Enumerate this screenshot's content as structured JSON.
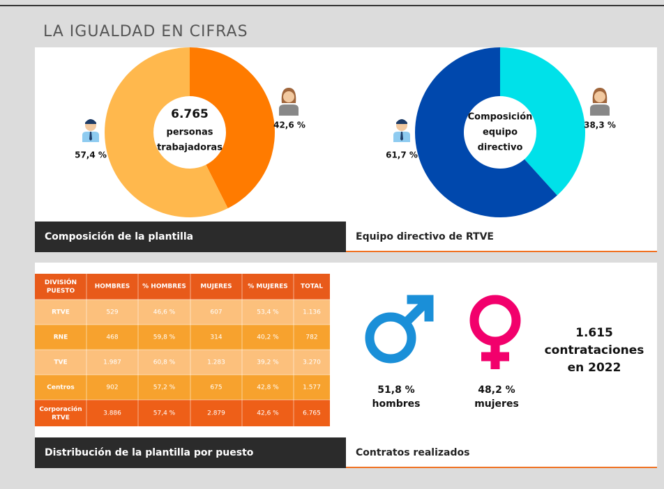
{
  "title": "LA IGUALDAD EN CIFRAS",
  "chart_data": [
    {
      "type": "pie",
      "center_label": [
        "6.765",
        "personas",
        "trabajadoras"
      ],
      "values": [
        57.4,
        42.6
      ],
      "value_labels": [
        "57,4 %",
        "42,6 %"
      ],
      "colors": [
        "#ffb84d",
        "#ff7b00"
      ],
      "caption": "Composición de la plantilla"
    },
    {
      "type": "pie",
      "center_label": [
        "Composición",
        "equipo",
        "directivo"
      ],
      "values": [
        61.7,
        38.3
      ],
      "value_labels": [
        "61,7 %",
        "38,3 %"
      ],
      "colors": [
        "#0048ad",
        "#00e1e9"
      ],
      "caption": "Equipo directivo de RTVE"
    }
  ],
  "table": {
    "header": [
      "DIVISIÓN PUESTO",
      "HOMBRES",
      "% HOMBRES",
      "MUJERES",
      "% MUJERES",
      "TOTAL"
    ],
    "rows": [
      [
        "RTVE",
        "529",
        "46,6 %",
        "607",
        "53,4 %",
        "1.136"
      ],
      [
        "RNE",
        "468",
        "59,8 %",
        "314",
        "40,2 %",
        "782"
      ],
      [
        "TVE",
        "1.987",
        "60,8 %",
        "1.283",
        "39,2 %",
        "3.270"
      ],
      [
        "Centros",
        "902",
        "57,2 %",
        "675",
        "42,8 %",
        "1.577"
      ],
      [
        "Corporación RTVE",
        "3.886",
        "57,4 %",
        "2.879",
        "42,6 %",
        "6.765"
      ]
    ],
    "caption": "Distribución de la plantilla por puesto"
  },
  "contracts": {
    "men": [
      "51,8 %",
      "hombres"
    ],
    "women": [
      "48,2 %",
      "mujeres"
    ],
    "total": [
      "1.615",
      "contrataciones",
      "en 2022"
    ],
    "caption": "Contratos realizados"
  }
}
